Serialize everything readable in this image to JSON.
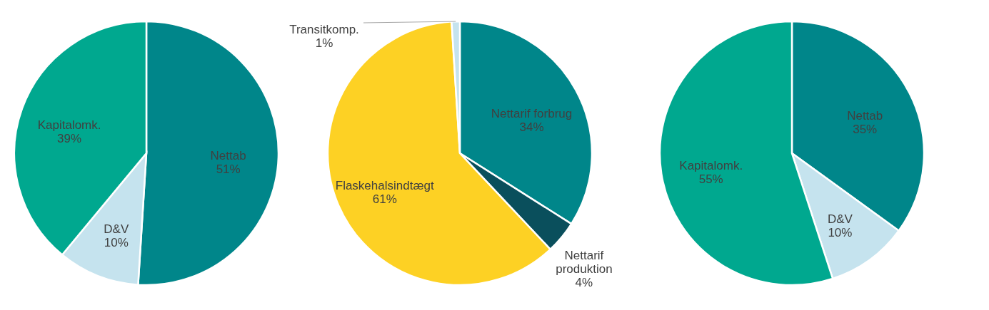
{
  "chart_data": [
    {
      "type": "pie",
      "categories": [
        "Nettab",
        "D&V",
        "Kapitalomk."
      ],
      "values": [
        51,
        10,
        39
      ],
      "colors": [
        "#00868a",
        "#c5e3ee",
        "#00a88f"
      ],
      "value_labels": [
        "51%",
        "10%",
        "39%"
      ],
      "legend": false
    },
    {
      "type": "pie",
      "categories": [
        "Nettarif forbrug",
        "Nettarif produktion",
        "Flaskehalsindtægt",
        "Transitkomp."
      ],
      "values": [
        34,
        4,
        61,
        1
      ],
      "colors": [
        "#00868a",
        "#0a4f5c",
        "#fdd124",
        "#c5e3ee"
      ],
      "value_labels": [
        "34%",
        "4%",
        "61%",
        "1%"
      ],
      "legend": false
    },
    {
      "type": "pie",
      "categories": [
        "Nettab",
        "D&V",
        "Kapitalomk."
      ],
      "values": [
        35,
        10,
        55
      ],
      "colors": [
        "#00868a",
        "#c5e3ee",
        "#00a88f"
      ],
      "value_labels": [
        "35%",
        "10%",
        "55%"
      ],
      "legend": false
    }
  ]
}
